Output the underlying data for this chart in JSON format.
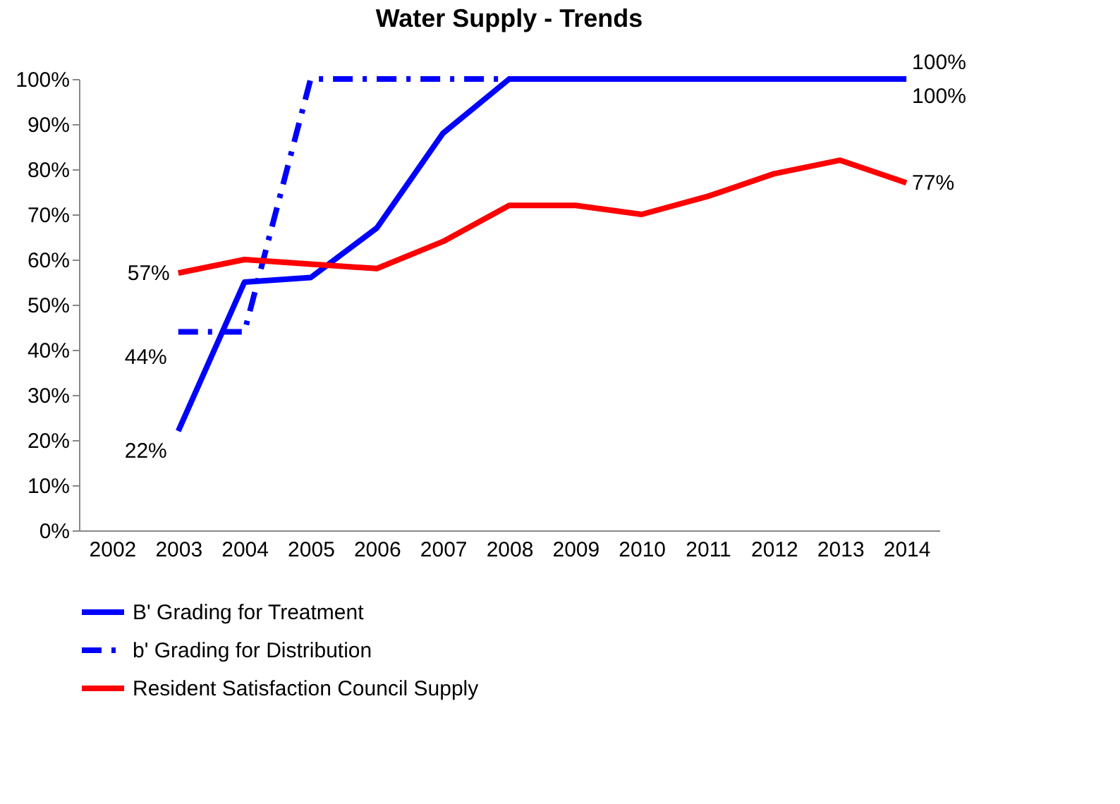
{
  "chart_data": {
    "type": "line",
    "title": "Water Supply - Trends",
    "categories": [
      "2002",
      "2003",
      "2004",
      "2005",
      "2006",
      "2007",
      "2008",
      "2009",
      "2010",
      "2011",
      "2012",
      "2013",
      "2014"
    ],
    "series": [
      {
        "name": "B' Grading for Treatment",
        "color": "#0000ff",
        "line_style": "solid",
        "values": [
          null,
          22,
          55,
          56,
          67,
          88,
          100,
          100,
          100,
          100,
          100,
          100,
          100
        ],
        "value_labels": [
          null,
          "22%",
          null,
          null,
          null,
          null,
          null,
          null,
          null,
          null,
          null,
          null,
          "100%"
        ]
      },
      {
        "name": "b' Grading for Distribution",
        "color": "#0000ff",
        "line_style": "dashed",
        "values": [
          null,
          44,
          44,
          100,
          100,
          100,
          100,
          100,
          100,
          100,
          100,
          100,
          100
        ],
        "value_labels": [
          null,
          "44%",
          null,
          null,
          null,
          null,
          null,
          null,
          null,
          null,
          null,
          null,
          "100%"
        ]
      },
      {
        "name": "Resident Satisfaction Council Supply",
        "color": "#ff0000",
        "line_style": "solid",
        "values": [
          null,
          57,
          60,
          59,
          58,
          64,
          72,
          72,
          70,
          74,
          79,
          82,
          77
        ],
        "value_labels": [
          null,
          "57%",
          null,
          null,
          null,
          null,
          null,
          null,
          null,
          null,
          null,
          null,
          "77%"
        ]
      }
    ],
    "ylim": [
      0,
      100
    ],
    "yticks": [
      {
        "value": 0,
        "label": "0%"
      },
      {
        "value": 10,
        "label": "10%"
      },
      {
        "value": 20,
        "label": "20%"
      },
      {
        "value": 30,
        "label": "30%"
      },
      {
        "value": 40,
        "label": "40%"
      },
      {
        "value": 50,
        "label": "50%"
      },
      {
        "value": 60,
        "label": "60%"
      },
      {
        "value": 70,
        "label": "70%"
      },
      {
        "value": 80,
        "label": "80%"
      },
      {
        "value": 90,
        "label": "90%"
      },
      {
        "value": 100,
        "label": "100%"
      }
    ],
    "grid": false,
    "legend": "bottom",
    "marker": "none"
  }
}
